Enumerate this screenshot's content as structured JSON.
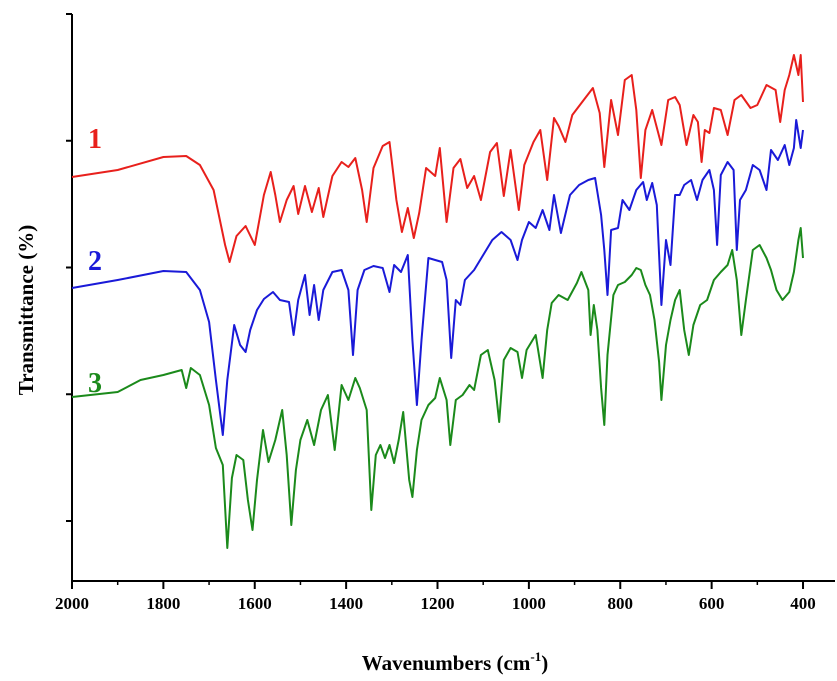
{
  "chart_data": {
    "type": "line",
    "title": "",
    "xlabel_main": "Wavenumbers (cm",
    "xlabel_sup": "-1",
    "xlabel_close": ")",
    "ylabel": "Transmittance (%)",
    "xlim": [
      2000,
      330
    ],
    "x_reversed": true,
    "xticks": [
      2000,
      1800,
      1600,
      1400,
      1200,
      1000,
      800,
      600,
      400
    ],
    "yticks_labeled": false,
    "grid": false,
    "colors": {
      "1": "#e8201c",
      "2": "#1a1ad8",
      "3": "#1b8a1b"
    },
    "series": [
      {
        "name": "1",
        "color": "#e8201c",
        "points": [
          [
            2000,
            177
          ],
          [
            1900,
            170
          ],
          [
            1800,
            157
          ],
          [
            1750,
            156
          ],
          [
            1720,
            165
          ],
          [
            1690,
            190
          ],
          [
            1665,
            245
          ],
          [
            1655,
            262
          ],
          [
            1640,
            236
          ],
          [
            1620,
            226
          ],
          [
            1600,
            245
          ],
          [
            1580,
            195
          ],
          [
            1565,
            172
          ],
          [
            1555,
            195
          ],
          [
            1545,
            222
          ],
          [
            1530,
            200
          ],
          [
            1515,
            186
          ],
          [
            1505,
            214
          ],
          [
            1490,
            186
          ],
          [
            1475,
            212
          ],
          [
            1460,
            188
          ],
          [
            1450,
            217
          ],
          [
            1430,
            176
          ],
          [
            1410,
            162
          ],
          [
            1395,
            167
          ],
          [
            1380,
            158
          ],
          [
            1365,
            190
          ],
          [
            1355,
            222
          ],
          [
            1340,
            168
          ],
          [
            1320,
            146
          ],
          [
            1305,
            142
          ],
          [
            1290,
            200
          ],
          [
            1278,
            232
          ],
          [
            1265,
            208
          ],
          [
            1252,
            238
          ],
          [
            1240,
            213
          ],
          [
            1225,
            168
          ],
          [
            1205,
            176
          ],
          [
            1195,
            148
          ],
          [
            1180,
            222
          ],
          [
            1165,
            168
          ],
          [
            1150,
            159
          ],
          [
            1135,
            188
          ],
          [
            1120,
            176
          ],
          [
            1105,
            200
          ],
          [
            1085,
            152
          ],
          [
            1070,
            143
          ],
          [
            1055,
            196
          ],
          [
            1040,
            150
          ],
          [
            1022,
            210
          ],
          [
            1010,
            165
          ],
          [
            990,
            142
          ],
          [
            975,
            130
          ],
          [
            960,
            180
          ],
          [
            945,
            118
          ],
          [
            935,
            126
          ],
          [
            920,
            142
          ],
          [
            905,
            115
          ],
          [
            880,
            100
          ],
          [
            860,
            88
          ],
          [
            845,
            113
          ],
          [
            835,
            167
          ],
          [
            820,
            100
          ],
          [
            805,
            135
          ],
          [
            790,
            80
          ],
          [
            775,
            75
          ],
          [
            765,
            110
          ],
          [
            755,
            178
          ],
          [
            745,
            130
          ],
          [
            730,
            110
          ],
          [
            710,
            145
          ],
          [
            695,
            100
          ],
          [
            680,
            97
          ],
          [
            670,
            105
          ],
          [
            655,
            145
          ],
          [
            640,
            115
          ],
          [
            630,
            122
          ],
          [
            622,
            162
          ],
          [
            615,
            130
          ],
          [
            605,
            133
          ],
          [
            595,
            108
          ],
          [
            580,
            110
          ],
          [
            565,
            135
          ],
          [
            550,
            100
          ],
          [
            535,
            95
          ],
          [
            515,
            108
          ],
          [
            500,
            105
          ],
          [
            480,
            85
          ],
          [
            460,
            90
          ],
          [
            450,
            122
          ],
          [
            440,
            90
          ],
          [
            430,
            75
          ],
          [
            420,
            55
          ],
          [
            410,
            75
          ],
          [
            405,
            55
          ],
          [
            400,
            102
          ]
        ]
      },
      {
        "name": "2",
        "color": "#1a1ad8",
        "points": [
          [
            2000,
            288
          ],
          [
            1900,
            280
          ],
          [
            1800,
            271
          ],
          [
            1750,
            272
          ],
          [
            1720,
            290
          ],
          [
            1700,
            322
          ],
          [
            1685,
            380
          ],
          [
            1670,
            435
          ],
          [
            1660,
            380
          ],
          [
            1645,
            325
          ],
          [
            1632,
            345
          ],
          [
            1620,
            352
          ],
          [
            1610,
            330
          ],
          [
            1595,
            310
          ],
          [
            1580,
            299
          ],
          [
            1560,
            292
          ],
          [
            1545,
            300
          ],
          [
            1525,
            302
          ],
          [
            1515,
            335
          ],
          [
            1505,
            300
          ],
          [
            1490,
            275
          ],
          [
            1480,
            315
          ],
          [
            1470,
            285
          ],
          [
            1460,
            320
          ],
          [
            1450,
            290
          ],
          [
            1430,
            272
          ],
          [
            1410,
            270
          ],
          [
            1395,
            290
          ],
          [
            1385,
            355
          ],
          [
            1375,
            290
          ],
          [
            1360,
            270
          ],
          [
            1340,
            266
          ],
          [
            1320,
            268
          ],
          [
            1305,
            292
          ],
          [
            1295,
            265
          ],
          [
            1280,
            272
          ],
          [
            1265,
            255
          ],
          [
            1255,
            340
          ],
          [
            1245,
            405
          ],
          [
            1235,
            340
          ],
          [
            1220,
            258
          ],
          [
            1205,
            260
          ],
          [
            1190,
            262
          ],
          [
            1180,
            280
          ],
          [
            1170,
            358
          ],
          [
            1160,
            300
          ],
          [
            1150,
            305
          ],
          [
            1140,
            280
          ],
          [
            1120,
            270
          ],
          [
            1100,
            255
          ],
          [
            1080,
            240
          ],
          [
            1060,
            232
          ],
          [
            1040,
            240
          ],
          [
            1025,
            260
          ],
          [
            1015,
            240
          ],
          [
            1000,
            222
          ],
          [
            985,
            228
          ],
          [
            970,
            210
          ],
          [
            955,
            230
          ],
          [
            945,
            195
          ],
          [
            930,
            233
          ],
          [
            910,
            195
          ],
          [
            890,
            185
          ],
          [
            870,
            180
          ],
          [
            855,
            178
          ],
          [
            842,
            215
          ],
          [
            835,
            250
          ],
          [
            828,
            295
          ],
          [
            820,
            230
          ],
          [
            805,
            228
          ],
          [
            795,
            200
          ],
          [
            780,
            210
          ],
          [
            765,
            190
          ],
          [
            750,
            182
          ],
          [
            742,
            200
          ],
          [
            730,
            183
          ],
          [
            720,
            205
          ],
          [
            710,
            305
          ],
          [
            700,
            240
          ],
          [
            690,
            265
          ],
          [
            680,
            195
          ],
          [
            670,
            195
          ],
          [
            660,
            185
          ],
          [
            645,
            180
          ],
          [
            632,
            200
          ],
          [
            620,
            180
          ],
          [
            605,
            170
          ],
          [
            595,
            190
          ],
          [
            588,
            245
          ],
          [
            580,
            175
          ],
          [
            565,
            162
          ],
          [
            552,
            170
          ],
          [
            545,
            250
          ],
          [
            538,
            200
          ],
          [
            525,
            190
          ],
          [
            510,
            165
          ],
          [
            495,
            170
          ],
          [
            480,
            190
          ],
          [
            470,
            150
          ],
          [
            455,
            160
          ],
          [
            440,
            145
          ],
          [
            430,
            165
          ],
          [
            420,
            148
          ],
          [
            415,
            120
          ],
          [
            405,
            148
          ],
          [
            400,
            130
          ]
        ]
      },
      {
        "name": "3",
        "color": "#1b8a1b",
        "points": [
          [
            2000,
            397
          ],
          [
            1900,
            392
          ],
          [
            1850,
            380
          ],
          [
            1800,
            375
          ],
          [
            1760,
            370
          ],
          [
            1750,
            388
          ],
          [
            1740,
            368
          ],
          [
            1720,
            375
          ],
          [
            1700,
            405
          ],
          [
            1685,
            448
          ],
          [
            1670,
            465
          ],
          [
            1660,
            548
          ],
          [
            1650,
            478
          ],
          [
            1640,
            455
          ],
          [
            1625,
            460
          ],
          [
            1615,
            500
          ],
          [
            1605,
            530
          ],
          [
            1595,
            480
          ],
          [
            1582,
            430
          ],
          [
            1570,
            462
          ],
          [
            1555,
            440
          ],
          [
            1540,
            410
          ],
          [
            1530,
            455
          ],
          [
            1520,
            525
          ],
          [
            1510,
            470
          ],
          [
            1500,
            440
          ],
          [
            1485,
            420
          ],
          [
            1470,
            445
          ],
          [
            1455,
            410
          ],
          [
            1440,
            395
          ],
          [
            1425,
            450
          ],
          [
            1410,
            385
          ],
          [
            1395,
            400
          ],
          [
            1380,
            378
          ],
          [
            1370,
            388
          ],
          [
            1355,
            410
          ],
          [
            1345,
            510
          ],
          [
            1335,
            455
          ],
          [
            1325,
            445
          ],
          [
            1315,
            458
          ],
          [
            1305,
            445
          ],
          [
            1295,
            463
          ],
          [
            1285,
            440
          ],
          [
            1275,
            412
          ],
          [
            1262,
            480
          ],
          [
            1255,
            497
          ],
          [
            1245,
            450
          ],
          [
            1235,
            420
          ],
          [
            1220,
            405
          ],
          [
            1205,
            398
          ],
          [
            1195,
            378
          ],
          [
            1180,
            400
          ],
          [
            1172,
            445
          ],
          [
            1160,
            400
          ],
          [
            1145,
            395
          ],
          [
            1130,
            385
          ],
          [
            1120,
            390
          ],
          [
            1105,
            355
          ],
          [
            1090,
            350
          ],
          [
            1075,
            380
          ],
          [
            1065,
            422
          ],
          [
            1055,
            360
          ],
          [
            1040,
            348
          ],
          [
            1025,
            352
          ],
          [
            1015,
            378
          ],
          [
            1005,
            350
          ],
          [
            985,
            335
          ],
          [
            970,
            378
          ],
          [
            960,
            330
          ],
          [
            950,
            303
          ],
          [
            935,
            295
          ],
          [
            915,
            300
          ],
          [
            895,
            283
          ],
          [
            885,
            272
          ],
          [
            870,
            290
          ],
          [
            865,
            335
          ],
          [
            858,
            305
          ],
          [
            850,
            330
          ],
          [
            842,
            388
          ],
          [
            835,
            425
          ],
          [
            828,
            355
          ],
          [
            815,
            295
          ],
          [
            805,
            285
          ],
          [
            790,
            282
          ],
          [
            775,
            275
          ],
          [
            765,
            268
          ],
          [
            755,
            270
          ],
          [
            745,
            285
          ],
          [
            735,
            295
          ],
          [
            725,
            320
          ],
          [
            715,
            362
          ],
          [
            710,
            400
          ],
          [
            700,
            345
          ],
          [
            690,
            320
          ],
          [
            680,
            300
          ],
          [
            670,
            290
          ],
          [
            660,
            330
          ],
          [
            650,
            355
          ],
          [
            640,
            325
          ],
          [
            625,
            305
          ],
          [
            610,
            300
          ],
          [
            595,
            280
          ],
          [
            580,
            272
          ],
          [
            565,
            265
          ],
          [
            555,
            250
          ],
          [
            545,
            280
          ],
          [
            535,
            335
          ],
          [
            525,
            300
          ],
          [
            510,
            250
          ],
          [
            495,
            245
          ],
          [
            480,
            258
          ],
          [
            470,
            270
          ],
          [
            458,
            290
          ],
          [
            445,
            300
          ],
          [
            430,
            292
          ],
          [
            420,
            272
          ],
          [
            410,
            240
          ],
          [
            405,
            228
          ],
          [
            400,
            258
          ]
        ]
      }
    ]
  }
}
